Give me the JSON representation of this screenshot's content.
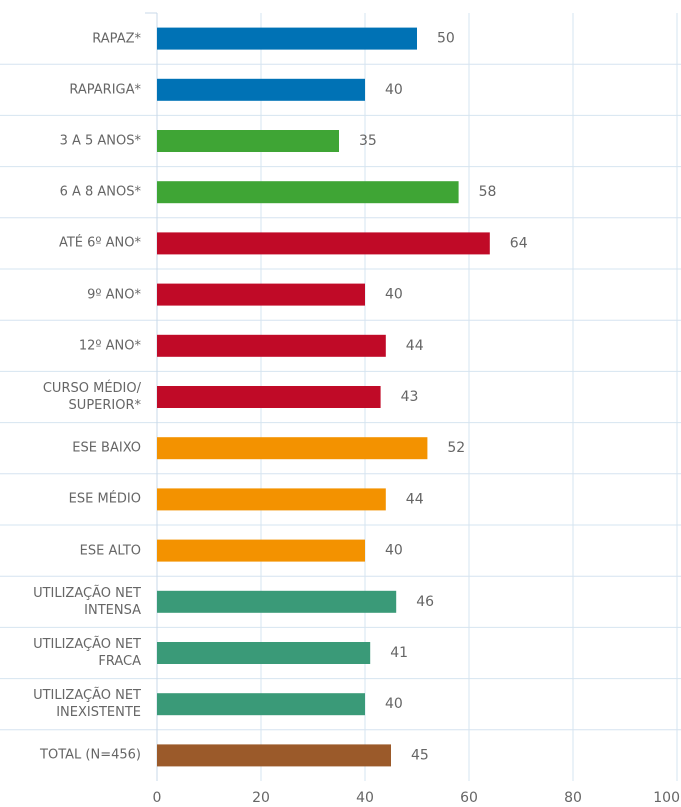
{
  "chart_data": {
    "type": "bar",
    "orientation": "horizontal",
    "categories": [
      "RAPAZ*",
      "RAPARIGA*",
      "3 A 5 ANOS*",
      "6 A 8 ANOS*",
      "ATÉ 6º ANO*",
      "9º ANO*",
      "12º ANO*",
      "CURSO MÉDIO/\nSUPERIOR*",
      "ESE BAIXO",
      "ESE MÉDIO",
      "ESE ALTO",
      "UTILIZAÇÃO NET\nINTENSA",
      "UTILIZAÇÃO NET\nFRACA",
      "UTILIZAÇÃO NET\nINEXISTENTE",
      "TOTAL (N=456)"
    ],
    "values": [
      50,
      40,
      35,
      58,
      64,
      40,
      44,
      43,
      52,
      44,
      40,
      46,
      41,
      40,
      45
    ],
    "colors": [
      "#0072b5",
      "#0072b5",
      "#3fa535",
      "#3fa535",
      "#c00a27",
      "#c00a27",
      "#c00a27",
      "#c00a27",
      "#f39200",
      "#f39200",
      "#f39200",
      "#3a9a78",
      "#3a9a78",
      "#3a9a78",
      "#9b5a2a"
    ],
    "xlim": [
      0,
      100
    ],
    "xticks": [
      0,
      20,
      40,
      60,
      80,
      100
    ],
    "grid": true
  }
}
